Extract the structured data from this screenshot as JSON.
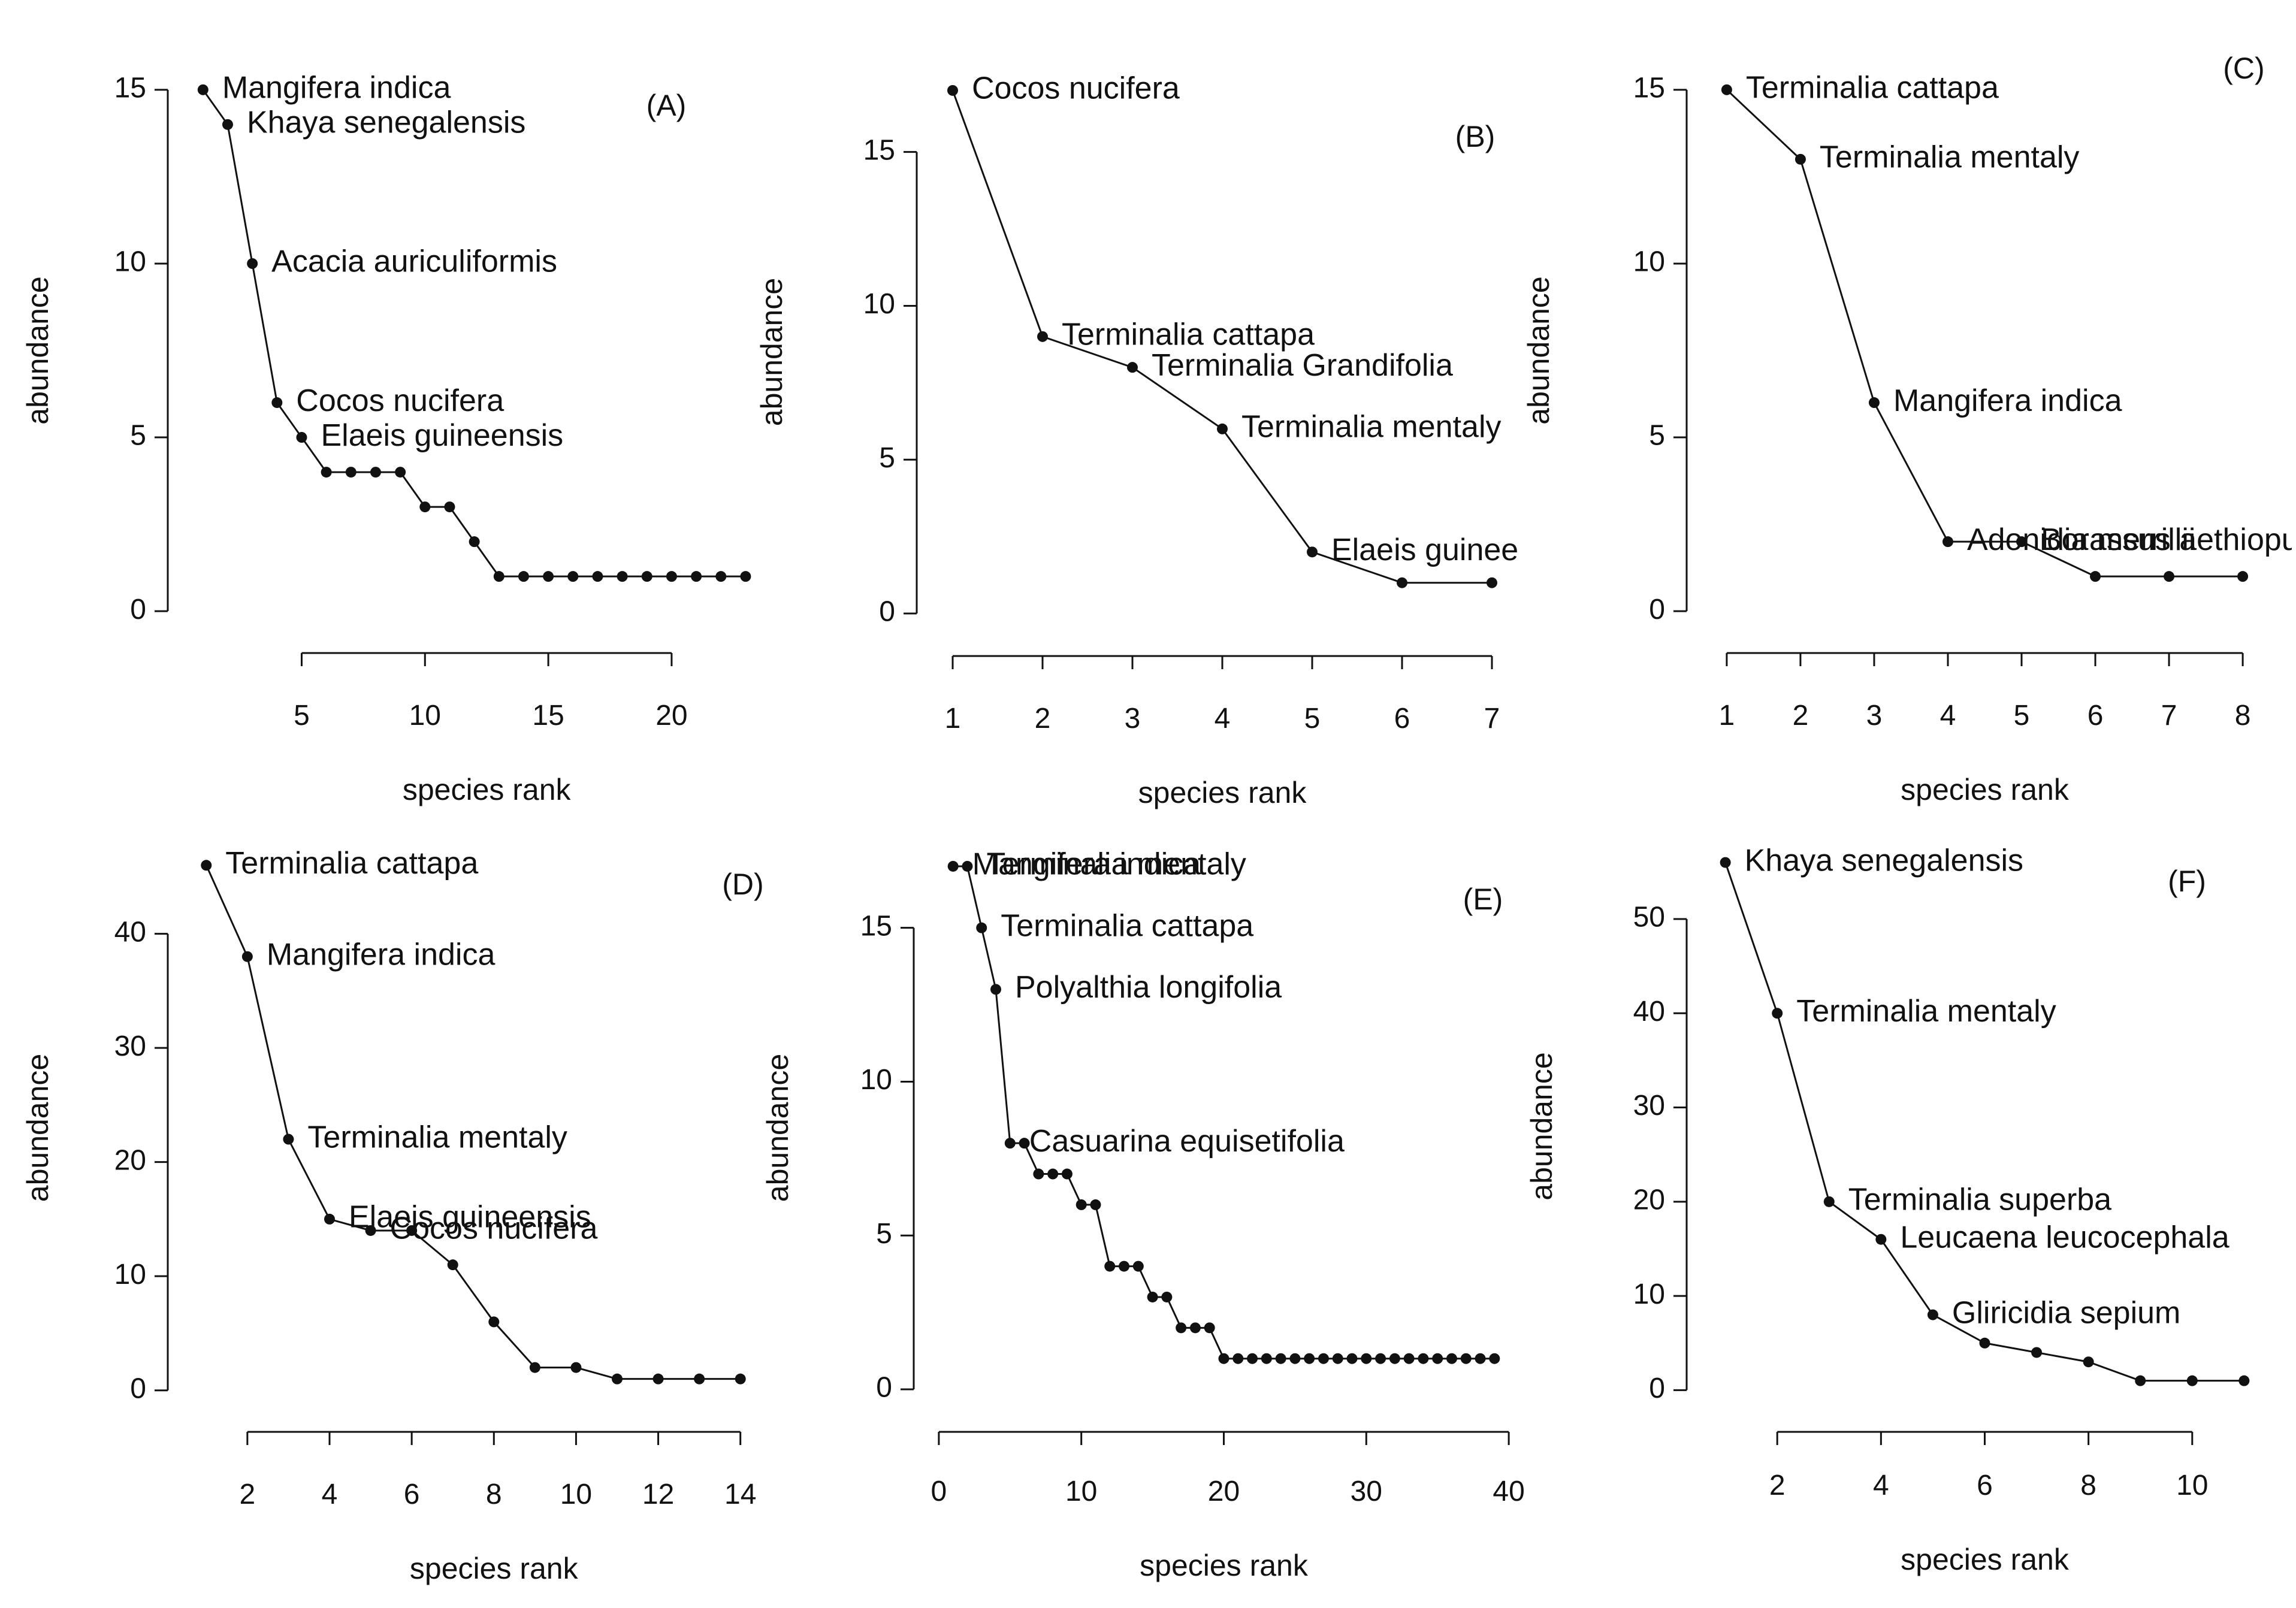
{
  "colors": {
    "ink": "#111111",
    "background": "#ffffff"
  },
  "chart_data": [
    {
      "id": "A",
      "type": "line",
      "tag": "(A)",
      "xlabel": "species rank",
      "ylabel": "abundance",
      "xlim": [
        0.3,
        23.5
      ],
      "ylim": [
        -0.6,
        15.6
      ],
      "xticks": [
        5,
        10,
        15,
        20
      ],
      "yticks": [
        0,
        5,
        10,
        15
      ],
      "x": [
        1,
        2,
        3,
        4,
        5,
        6,
        7,
        8,
        9,
        10,
        11,
        12,
        13,
        14,
        15,
        16,
        17,
        18,
        19,
        20,
        21,
        22,
        23
      ],
      "y": [
        15,
        14,
        10,
        6,
        5,
        4,
        4,
        4,
        4,
        3,
        3,
        2,
        1,
        1,
        1,
        1,
        1,
        1,
        1,
        1,
        1,
        1,
        1
      ],
      "annotations": [
        {
          "x": 1,
          "y": 15,
          "text": "Mangifera indica"
        },
        {
          "x": 2,
          "y": 14,
          "text": "Khaya senegalensis"
        },
        {
          "x": 3,
          "y": 10,
          "text": "Acacia auriculiformis"
        },
        {
          "x": 4,
          "y": 6,
          "text": "Cocos nucifera"
        },
        {
          "x": 5,
          "y": 5,
          "text": "Elaeis guineensis"
        }
      ]
    },
    {
      "id": "B",
      "type": "line",
      "tag": "(B)",
      "xlabel": "species rank",
      "ylabel": "abundance",
      "xlim": [
        0.8,
        7.2
      ],
      "ylim": [
        -0.7,
        17.7
      ],
      "xticks": [
        1,
        2,
        3,
        4,
        5,
        6,
        7
      ],
      "yticks": [
        0,
        5,
        10,
        15
      ],
      "x": [
        1,
        2,
        3,
        4,
        5,
        6,
        7
      ],
      "y": [
        17,
        9,
        8,
        6,
        2,
        1,
        1
      ],
      "annotations": [
        {
          "x": 1,
          "y": 17,
          "text": "Cocos nucifera"
        },
        {
          "x": 2,
          "y": 9,
          "text": "Terminalia cattapa"
        },
        {
          "x": 3,
          "y": 8,
          "text": "Terminalia Grandifolia"
        },
        {
          "x": 4,
          "y": 6,
          "text": "Terminalia mentaly"
        },
        {
          "x": 5,
          "y": 2,
          "text": "Elaeis guinee",
          "clip": true
        }
      ]
    },
    {
      "id": "C",
      "type": "line",
      "tag": "(C)",
      "xlabel": "species rank",
      "ylabel": "abundance",
      "xlim": [
        0.7,
        8.3
      ],
      "ylim": [
        -0.6,
        15.6
      ],
      "xticks": [
        1,
        2,
        3,
        4,
        5,
        6,
        7,
        8
      ],
      "yticks": [
        0,
        5,
        10,
        15
      ],
      "x": [
        1,
        2,
        3,
        4,
        5,
        6,
        7,
        8
      ],
      "y": [
        15,
        13,
        6,
        2,
        2,
        1,
        1,
        1
      ],
      "annotations": [
        {
          "x": 1,
          "y": 15,
          "text": "Terminalia cattapa"
        },
        {
          "x": 2,
          "y": 13,
          "text": "Terminalia mentaly"
        },
        {
          "x": 3,
          "y": 6,
          "text": "Mangifera indica"
        },
        {
          "x": 4,
          "y": 2,
          "text": "Adonidia merrillii"
        },
        {
          "x": 5,
          "y": 2,
          "text": "Borassus aethiopum",
          "clip": true
        }
      ]
    },
    {
      "id": "D",
      "type": "line",
      "tag": "(D)",
      "xlabel": "species rank",
      "ylabel": "abundance",
      "xlim": [
        0.5,
        14.5
      ],
      "ylim": [
        -1.8,
        47.8
      ],
      "xticks": [
        2,
        4,
        6,
        8,
        10,
        12,
        14
      ],
      "yticks": [
        0,
        10,
        20,
        30,
        40
      ],
      "x": [
        1,
        2,
        3,
        4,
        5,
        6,
        7,
        8,
        9,
        10,
        11,
        12,
        13,
        14
      ],
      "y": [
        46,
        38,
        22,
        15,
        14,
        14,
        11,
        6,
        2,
        2,
        1,
        1,
        1,
        1
      ],
      "annotations": [
        {
          "x": 1,
          "y": 46,
          "text": "Terminalia cattapa"
        },
        {
          "x": 2,
          "y": 38,
          "text": "Mangifera indica"
        },
        {
          "x": 3,
          "y": 22,
          "text": "Terminalia mentaly"
        },
        {
          "x": 4,
          "y": 15,
          "text": "Elaeis guineensis"
        },
        {
          "x": 5,
          "y": 14,
          "text": "Cocos nucifera"
        }
      ]
    },
    {
      "id": "E",
      "type": "line",
      "tag": "(E)",
      "xlabel": "species rank",
      "ylabel": "abundance",
      "xlim": [
        -0.5,
        40.5
      ],
      "ylim": [
        -0.7,
        17.7
      ],
      "xticks": [
        0,
        10,
        20,
        30,
        40
      ],
      "yticks": [
        0,
        5,
        10,
        15
      ],
      "x": [
        1,
        2,
        3,
        4,
        5,
        6,
        7,
        8,
        9,
        10,
        11,
        12,
        13,
        14,
        15,
        16,
        17,
        18,
        19,
        20,
        21,
        22,
        23,
        24,
        25,
        26,
        27,
        28,
        29,
        30,
        31,
        32,
        33,
        34,
        35,
        36,
        37,
        38,
        39
      ],
      "y": [
        17,
        17,
        15,
        13,
        8,
        8,
        7,
        7,
        7,
        6,
        6,
        4,
        4,
        4,
        3,
        3,
        2,
        2,
        2,
        1,
        1,
        1,
        1,
        1,
        1,
        1,
        1,
        1,
        1,
        1,
        1,
        1,
        1,
        1,
        1,
        1,
        1,
        1,
        1
      ],
      "annotations": [
        {
          "x": 1,
          "y": 17,
          "text": "Mangifera indica"
        },
        {
          "x": 2,
          "y": 17,
          "text": "Terminalia mentaly"
        },
        {
          "x": 3,
          "y": 15,
          "text": "Terminalia cattapa"
        },
        {
          "x": 4,
          "y": 13,
          "text": "Polyalthia longifolia"
        },
        {
          "x": 5,
          "y": 8,
          "text": "Casuarina equisetifolia"
        }
      ]
    },
    {
      "id": "F",
      "type": "line",
      "tag": "(F)",
      "xlabel": "species rank",
      "ylabel": "abundance",
      "xlim": [
        0.6,
        11.4
      ],
      "ylim": [
        -2.2,
        58.2
      ],
      "xticks": [
        2,
        4,
        6,
        8,
        10
      ],
      "yticks": [
        0,
        10,
        20,
        30,
        40,
        50
      ],
      "x": [
        1,
        2,
        3,
        4,
        5,
        6,
        7,
        8,
        9,
        10,
        11
      ],
      "y": [
        56,
        40,
        20,
        16,
        8,
        5,
        4,
        3,
        1,
        1,
        1
      ],
      "annotations": [
        {
          "x": 1,
          "y": 56,
          "text": "Khaya senegalensis"
        },
        {
          "x": 2,
          "y": 40,
          "text": "Terminalia mentaly"
        },
        {
          "x": 3,
          "y": 20,
          "text": "Terminalia superba"
        },
        {
          "x": 4,
          "y": 16,
          "text": "Leucaena leucocephala"
        },
        {
          "x": 5,
          "y": 8,
          "text": "Gliricidia sepium"
        }
      ]
    }
  ]
}
